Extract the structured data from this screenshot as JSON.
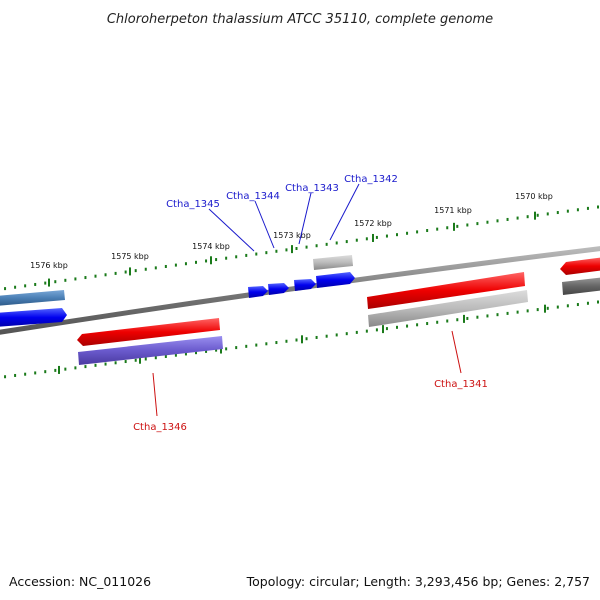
{
  "title": "Chloroherpeton thalassium ATCC 35110, complete genome",
  "footer": {
    "accession": "Accession: NC_011026",
    "stats": "Topology: circular; Length: 3,293,456 bp; Genes: 2,757"
  },
  "ticks": [
    {
      "label": "1576 kbp"
    },
    {
      "label": "1575 kbp"
    },
    {
      "label": "1574 kbp"
    },
    {
      "label": "1573 kbp"
    },
    {
      "label": "1572 kbp"
    },
    {
      "label": "1571 kbp"
    },
    {
      "label": "1570 kbp"
    }
  ],
  "genes": [
    {
      "label": "Ctha_1345",
      "strand": "+",
      "color": "#0000ee"
    },
    {
      "label": "Ctha_1344",
      "strand": "+",
      "color": "#0000ee"
    },
    {
      "label": "Ctha_1343",
      "strand": "+",
      "color": "#0000ee"
    },
    {
      "label": "Ctha_1342",
      "strand": "+",
      "color": "#0000ee"
    },
    {
      "label": "Ctha_1346",
      "strand": "-",
      "color": "#6a5acd"
    },
    {
      "label": "Ctha_1341",
      "strand": "-",
      "color": "#bbbbbb"
    }
  ],
  "colors": {
    "backbone": "#888888",
    "tick": "#1a7a1a",
    "forward_gene": "#0000ee",
    "reverse_gene": "#ee0000",
    "grey_gene": "#aaaaaa",
    "steel_gene": "#4a7fb5"
  }
}
